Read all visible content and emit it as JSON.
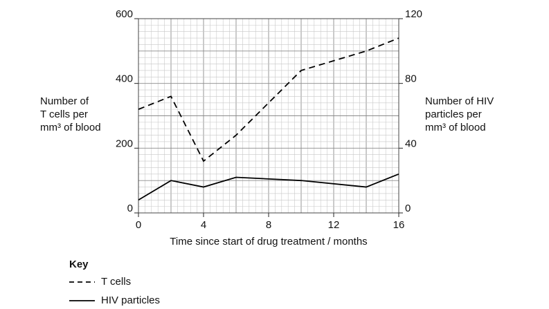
{
  "chart_data": {
    "type": "line",
    "x": [
      0,
      2,
      4,
      6,
      10,
      14,
      16
    ],
    "xlim": [
      0,
      16
    ],
    "xticks": [
      0,
      4,
      8,
      12,
      16
    ],
    "ylim": [
      0,
      600
    ],
    "yticks": [
      0,
      200,
      400,
      600
    ],
    "y2lim": [
      0,
      120
    ],
    "y2ticks": [
      0,
      40,
      80,
      120
    ],
    "xlabel": "Time since start of drug treatment / months",
    "ylabel": [
      "Number of",
      "T cells per",
      "mm³ of blood"
    ],
    "y2label": [
      "Number of HIV",
      "particles per",
      "mm³ of blood"
    ],
    "legend_title": "Key",
    "grid": true,
    "series": [
      {
        "name": "T cells",
        "color": "#000000",
        "dash": "dashed",
        "values": [
          320,
          360,
          160,
          240,
          440,
          500,
          540
        ]
      },
      {
        "name": "HIV particles",
        "color": "#000000",
        "dash": "solid",
        "axis": "y2",
        "values": [
          8,
          20,
          16,
          22,
          20,
          16,
          24
        ]
      }
    ]
  }
}
